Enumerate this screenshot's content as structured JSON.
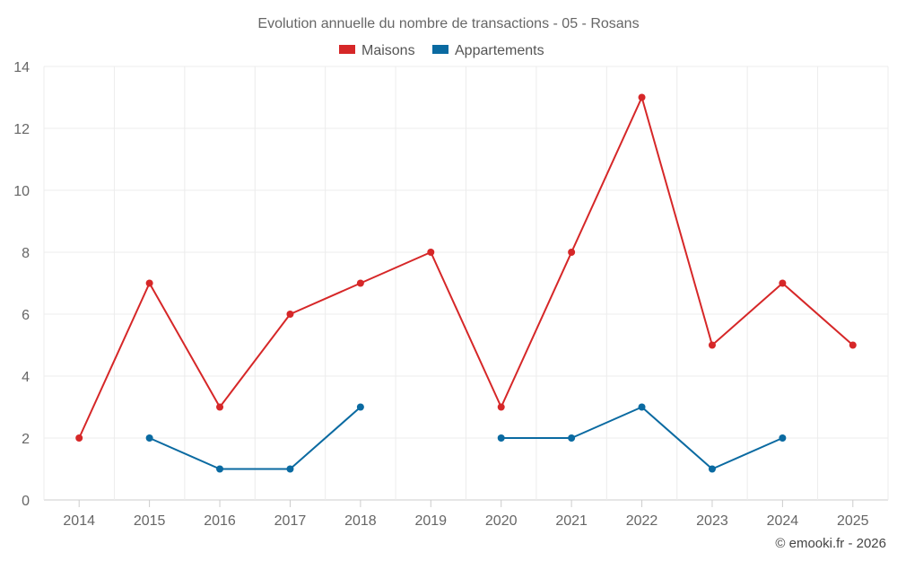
{
  "chart_data": {
    "type": "line",
    "title": "Evolution annuelle du nombre de transactions - 05 - Rosans",
    "categories": [
      "2014",
      "2015",
      "2016",
      "2017",
      "2018",
      "2019",
      "2020",
      "2021",
      "2022",
      "2023",
      "2024",
      "2025"
    ],
    "series": [
      {
        "name": "Maisons",
        "color": "#d62728",
        "values": [
          2,
          7,
          3,
          6,
          7,
          8,
          3,
          8,
          13,
          5,
          7,
          5
        ]
      },
      {
        "name": "Appartements",
        "color": "#0a6aa1",
        "values": [
          null,
          2,
          1,
          1,
          3,
          null,
          2,
          2,
          3,
          1,
          2,
          null
        ]
      }
    ],
    "ylim": [
      0,
      14
    ],
    "yticks": [
      0,
      2,
      4,
      6,
      8,
      10,
      12,
      14
    ],
    "xlabel": "",
    "ylabel": "",
    "grid": true,
    "legend": "top-center"
  },
  "credit": "© emooki.fr - 2026"
}
